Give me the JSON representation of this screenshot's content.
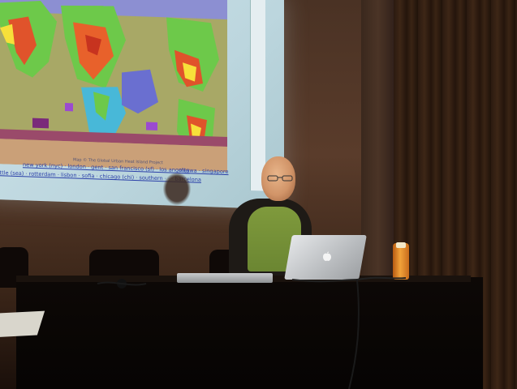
{
  "projection": {
    "caption": "Map © The Global Urban Heat Island Project",
    "links_line1": "new york (nyc) · london · gent · san francisco (sf) · los angeles",
    "links_line2": "seattle (sea) · rotterdam · lisbon · sofia · chicago (chi) · southern · · · barcelona",
    "links_extra": "ottawa · singapore"
  }
}
